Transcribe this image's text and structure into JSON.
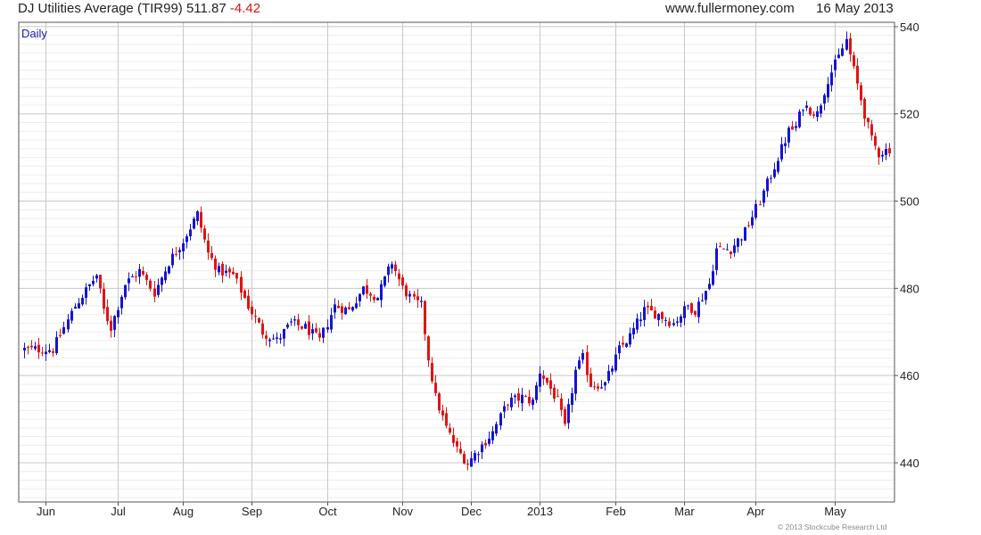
{
  "header": {
    "title": "DJ Utilities Average (TIR99)",
    "last": "511.87",
    "change": "-4.42",
    "site": "www.fullermoney.com",
    "date": "16 May 2013"
  },
  "footer": {
    "copyright": "© 2013 Stockcube Research Ltd"
  },
  "colors": {
    "up": "#1414d4",
    "down": "#e01414",
    "frame": "#555555",
    "grid_major": "#c8c8c8",
    "grid_minor": "#ececec",
    "period_label": "#1a1ab4"
  },
  "chart_data": {
    "type": "ohlc",
    "period": "Daily",
    "series_name": "DJ Utilities Average (TIR99)",
    "y_axis": {
      "side": "right",
      "min": 431,
      "max": 541,
      "ticks": [
        440,
        460,
        480,
        500,
        520,
        540
      ],
      "major_grid_step": 20,
      "minor_grid_step": 2
    },
    "x_axis": {
      "labels": [
        "Jun",
        "Jul",
        "Aug",
        "Sep",
        "Oct",
        "Nov",
        "Dec",
        "2013",
        "Feb",
        "Mar",
        "Apr",
        "May"
      ],
      "tick_index": [
        6,
        26,
        44,
        63,
        84,
        105,
        124,
        143,
        164,
        183,
        203,
        225
      ]
    },
    "grid": true,
    "bars_total": 241,
    "waypoints": [
      [
        0,
        466
      ],
      [
        8,
        466
      ],
      [
        14,
        476
      ],
      [
        20,
        483
      ],
      [
        22,
        475
      ],
      [
        24,
        471
      ],
      [
        28,
        481
      ],
      [
        32,
        484
      ],
      [
        36,
        479
      ],
      [
        40,
        486
      ],
      [
        44,
        491
      ],
      [
        48,
        497
      ],
      [
        51,
        488
      ],
      [
        54,
        484
      ],
      [
        58,
        483
      ],
      [
        62,
        476
      ],
      [
        66,
        470
      ],
      [
        70,
        468
      ],
      [
        74,
        472
      ],
      [
        78,
        471
      ],
      [
        82,
        468
      ],
      [
        86,
        476
      ],
      [
        90,
        475
      ],
      [
        94,
        480
      ],
      [
        98,
        478
      ],
      [
        102,
        486
      ],
      [
        105,
        480
      ],
      [
        108,
        477
      ],
      [
        110,
        476
      ],
      [
        112,
        464
      ],
      [
        114,
        455
      ],
      [
        117,
        448
      ],
      [
        120,
        443
      ],
      [
        123,
        440
      ],
      [
        126,
        443
      ],
      [
        130,
        447
      ],
      [
        134,
        454
      ],
      [
        138,
        455
      ],
      [
        141,
        454
      ],
      [
        143,
        461
      ],
      [
        146,
        457
      ],
      [
        148,
        454
      ],
      [
        150,
        448
      ],
      [
        153,
        461
      ],
      [
        155,
        464
      ],
      [
        157,
        458
      ],
      [
        161,
        458
      ],
      [
        165,
        466
      ],
      [
        168,
        469
      ],
      [
        172,
        475
      ],
      [
        176,
        474
      ],
      [
        180,
        472
      ],
      [
        184,
        476
      ],
      [
        186,
        475
      ],
      [
        188,
        478
      ],
      [
        190,
        481
      ],
      [
        192,
        489
      ],
      [
        196,
        489
      ],
      [
        200,
        493
      ],
      [
        204,
        500
      ],
      [
        208,
        508
      ],
      [
        212,
        516
      ],
      [
        214,
        517
      ],
      [
        216,
        522
      ],
      [
        220,
        520
      ],
      [
        223,
        528
      ],
      [
        226,
        533
      ],
      [
        228,
        537
      ],
      [
        230,
        530
      ],
      [
        233,
        520
      ],
      [
        235,
        514
      ],
      [
        237,
        511
      ],
      [
        240,
        512
      ]
    ]
  }
}
